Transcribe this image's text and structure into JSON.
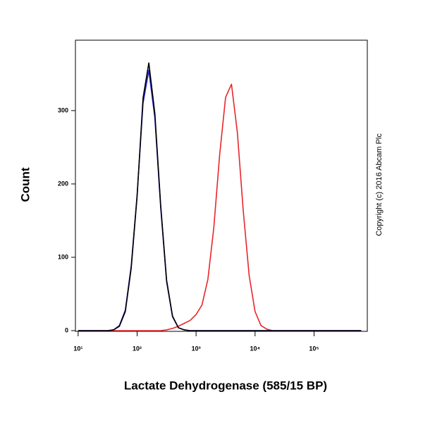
{
  "chart_data": {
    "type": "line",
    "x_label": "Lactate Dehydrogenase (585/15 BP)",
    "y_label": "Count",
    "annotation": "Copyright (c) 2016 Abcam Plc",
    "log_x": true,
    "grid": false,
    "xlim": [
      9,
      800000
    ],
    "ylim": [
      0,
      396
    ],
    "xticks": [
      {
        "value": 10,
        "label": "10¹"
      },
      {
        "value": 100,
        "label": "10²"
      },
      {
        "value": 1000,
        "label": "10³"
      },
      {
        "value": 10000,
        "label": "10⁴"
      },
      {
        "value": 100000,
        "label": "10⁵"
      }
    ],
    "yticks": [
      0,
      100,
      200,
      300
    ],
    "x": [
      10,
      12.6,
      15.8,
      20,
      25.1,
      31.6,
      39.8,
      50.1,
      63.1,
      79.4,
      100,
      126,
      158,
      200,
      251,
      316,
      398,
      501,
      631,
      794,
      1000,
      1259,
      1585,
      1995,
      2512,
      3162,
      3981,
      5012,
      6310,
      7943,
      10000,
      12589,
      15849,
      19953,
      25119,
      31623,
      39811,
      50119,
      63096,
      79433,
      100000,
      125893,
      158489,
      199526,
      251189,
      316228,
      398107,
      501187,
      630957
    ],
    "series": [
      {
        "color": "#e8262a",
        "values": [
          0,
          0,
          0,
          0,
          0,
          0,
          0,
          0,
          0,
          0,
          0,
          0,
          0,
          0,
          0,
          1,
          3,
          6,
          10,
          14,
          22,
          35,
          70,
          140,
          240,
          318,
          336,
          270,
          163,
          75,
          26,
          7,
          2,
          0,
          0,
          0,
          0,
          0,
          0,
          0,
          0,
          0,
          0,
          0,
          0,
          0,
          0,
          0,
          0
        ]
      },
      {
        "color": "#1f1fcf",
        "values": [
          0,
          0,
          0,
          0,
          0,
          0,
          1,
          7,
          28,
          88,
          185,
          310,
          355,
          290,
          168,
          67,
          19,
          4,
          1,
          0,
          0,
          0,
          0,
          0,
          0,
          0,
          0,
          0,
          0,
          0,
          0,
          0,
          0,
          0,
          0,
          0,
          0,
          0,
          0,
          0,
          0,
          0,
          0,
          0,
          0,
          0,
          0,
          0,
          0
        ]
      },
      {
        "color": "#000000",
        "values": [
          0,
          0,
          0,
          0,
          0,
          0,
          1,
          6,
          26,
          85,
          183,
          317,
          365,
          296,
          171,
          69,
          20,
          4,
          1,
          0,
          0,
          0,
          0,
          0,
          0,
          0,
          0,
          0,
          0,
          0,
          0,
          0,
          0,
          0,
          0,
          0,
          0,
          0,
          0,
          0,
          0,
          0,
          0,
          0,
          0,
          0,
          0,
          0,
          0
        ]
      }
    ]
  }
}
